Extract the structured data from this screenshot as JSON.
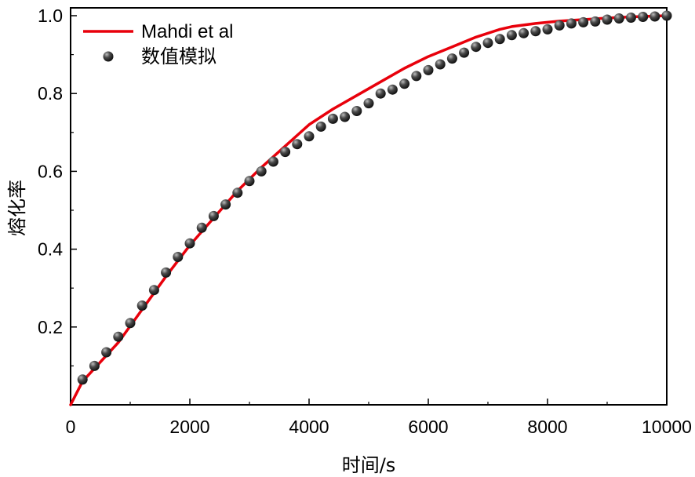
{
  "chart_data": {
    "type": "line",
    "xlabel": "时间/s",
    "ylabel": "熔化率",
    "xlim": [
      0,
      10000
    ],
    "ylim": [
      0,
      1.0
    ],
    "x_ticks": [
      "0",
      "2000",
      "4000",
      "6000",
      "8000",
      "10000"
    ],
    "x_tick_values": [
      0,
      2000,
      4000,
      6000,
      8000,
      10000
    ],
    "y_ticks": [
      "0.2",
      "0.4",
      "0.6",
      "0.8",
      "1.0"
    ],
    "y_tick_values": [
      0.2,
      0.4,
      0.6,
      0.8,
      1.0
    ],
    "grid": false,
    "legend_position": "top-left",
    "series": [
      {
        "name": "Mahdi et al",
        "style": "line",
        "color": "#e8000b",
        "x": [
          0,
          200,
          500,
          800,
          1200,
          1600,
          2000,
          2400,
          2800,
          3200,
          3600,
          4000,
          4400,
          4800,
          5200,
          5600,
          6000,
          6400,
          6800,
          7200,
          7400,
          7800,
          8200,
          8600,
          9000,
          9400,
          10000
        ],
        "y": [
          0,
          0.06,
          0.11,
          0.16,
          0.245,
          0.33,
          0.41,
          0.48,
          0.55,
          0.61,
          0.665,
          0.72,
          0.76,
          0.795,
          0.83,
          0.865,
          0.895,
          0.92,
          0.945,
          0.965,
          0.972,
          0.98,
          0.986,
          0.99,
          0.994,
          0.997,
          1.0
        ]
      },
      {
        "name": "数值模拟",
        "style": "scatter",
        "color": "#3a3a3a",
        "x": [
          200,
          400,
          600,
          800,
          1000,
          1200,
          1400,
          1600,
          1800,
          2000,
          2200,
          2400,
          2600,
          2800,
          3000,
          3200,
          3400,
          3600,
          3800,
          4000,
          4200,
          4400,
          4600,
          4800,
          5000,
          5200,
          5400,
          5600,
          5800,
          6000,
          6200,
          6400,
          6600,
          6800,
          7000,
          7200,
          7400,
          7600,
          7800,
          8000,
          8200,
          8400,
          8600,
          8800,
          9000,
          9200,
          9400,
          9600,
          9800,
          10000
        ],
        "y": [
          0.065,
          0.1,
          0.135,
          0.175,
          0.21,
          0.255,
          0.295,
          0.34,
          0.38,
          0.415,
          0.455,
          0.485,
          0.515,
          0.545,
          0.575,
          0.6,
          0.625,
          0.65,
          0.67,
          0.69,
          0.715,
          0.735,
          0.74,
          0.755,
          0.775,
          0.8,
          0.81,
          0.825,
          0.845,
          0.86,
          0.875,
          0.89,
          0.905,
          0.92,
          0.93,
          0.94,
          0.95,
          0.955,
          0.96,
          0.965,
          0.975,
          0.98,
          0.983,
          0.985,
          0.99,
          0.993,
          0.995,
          0.997,
          0.998,
          1.0
        ]
      }
    ]
  }
}
